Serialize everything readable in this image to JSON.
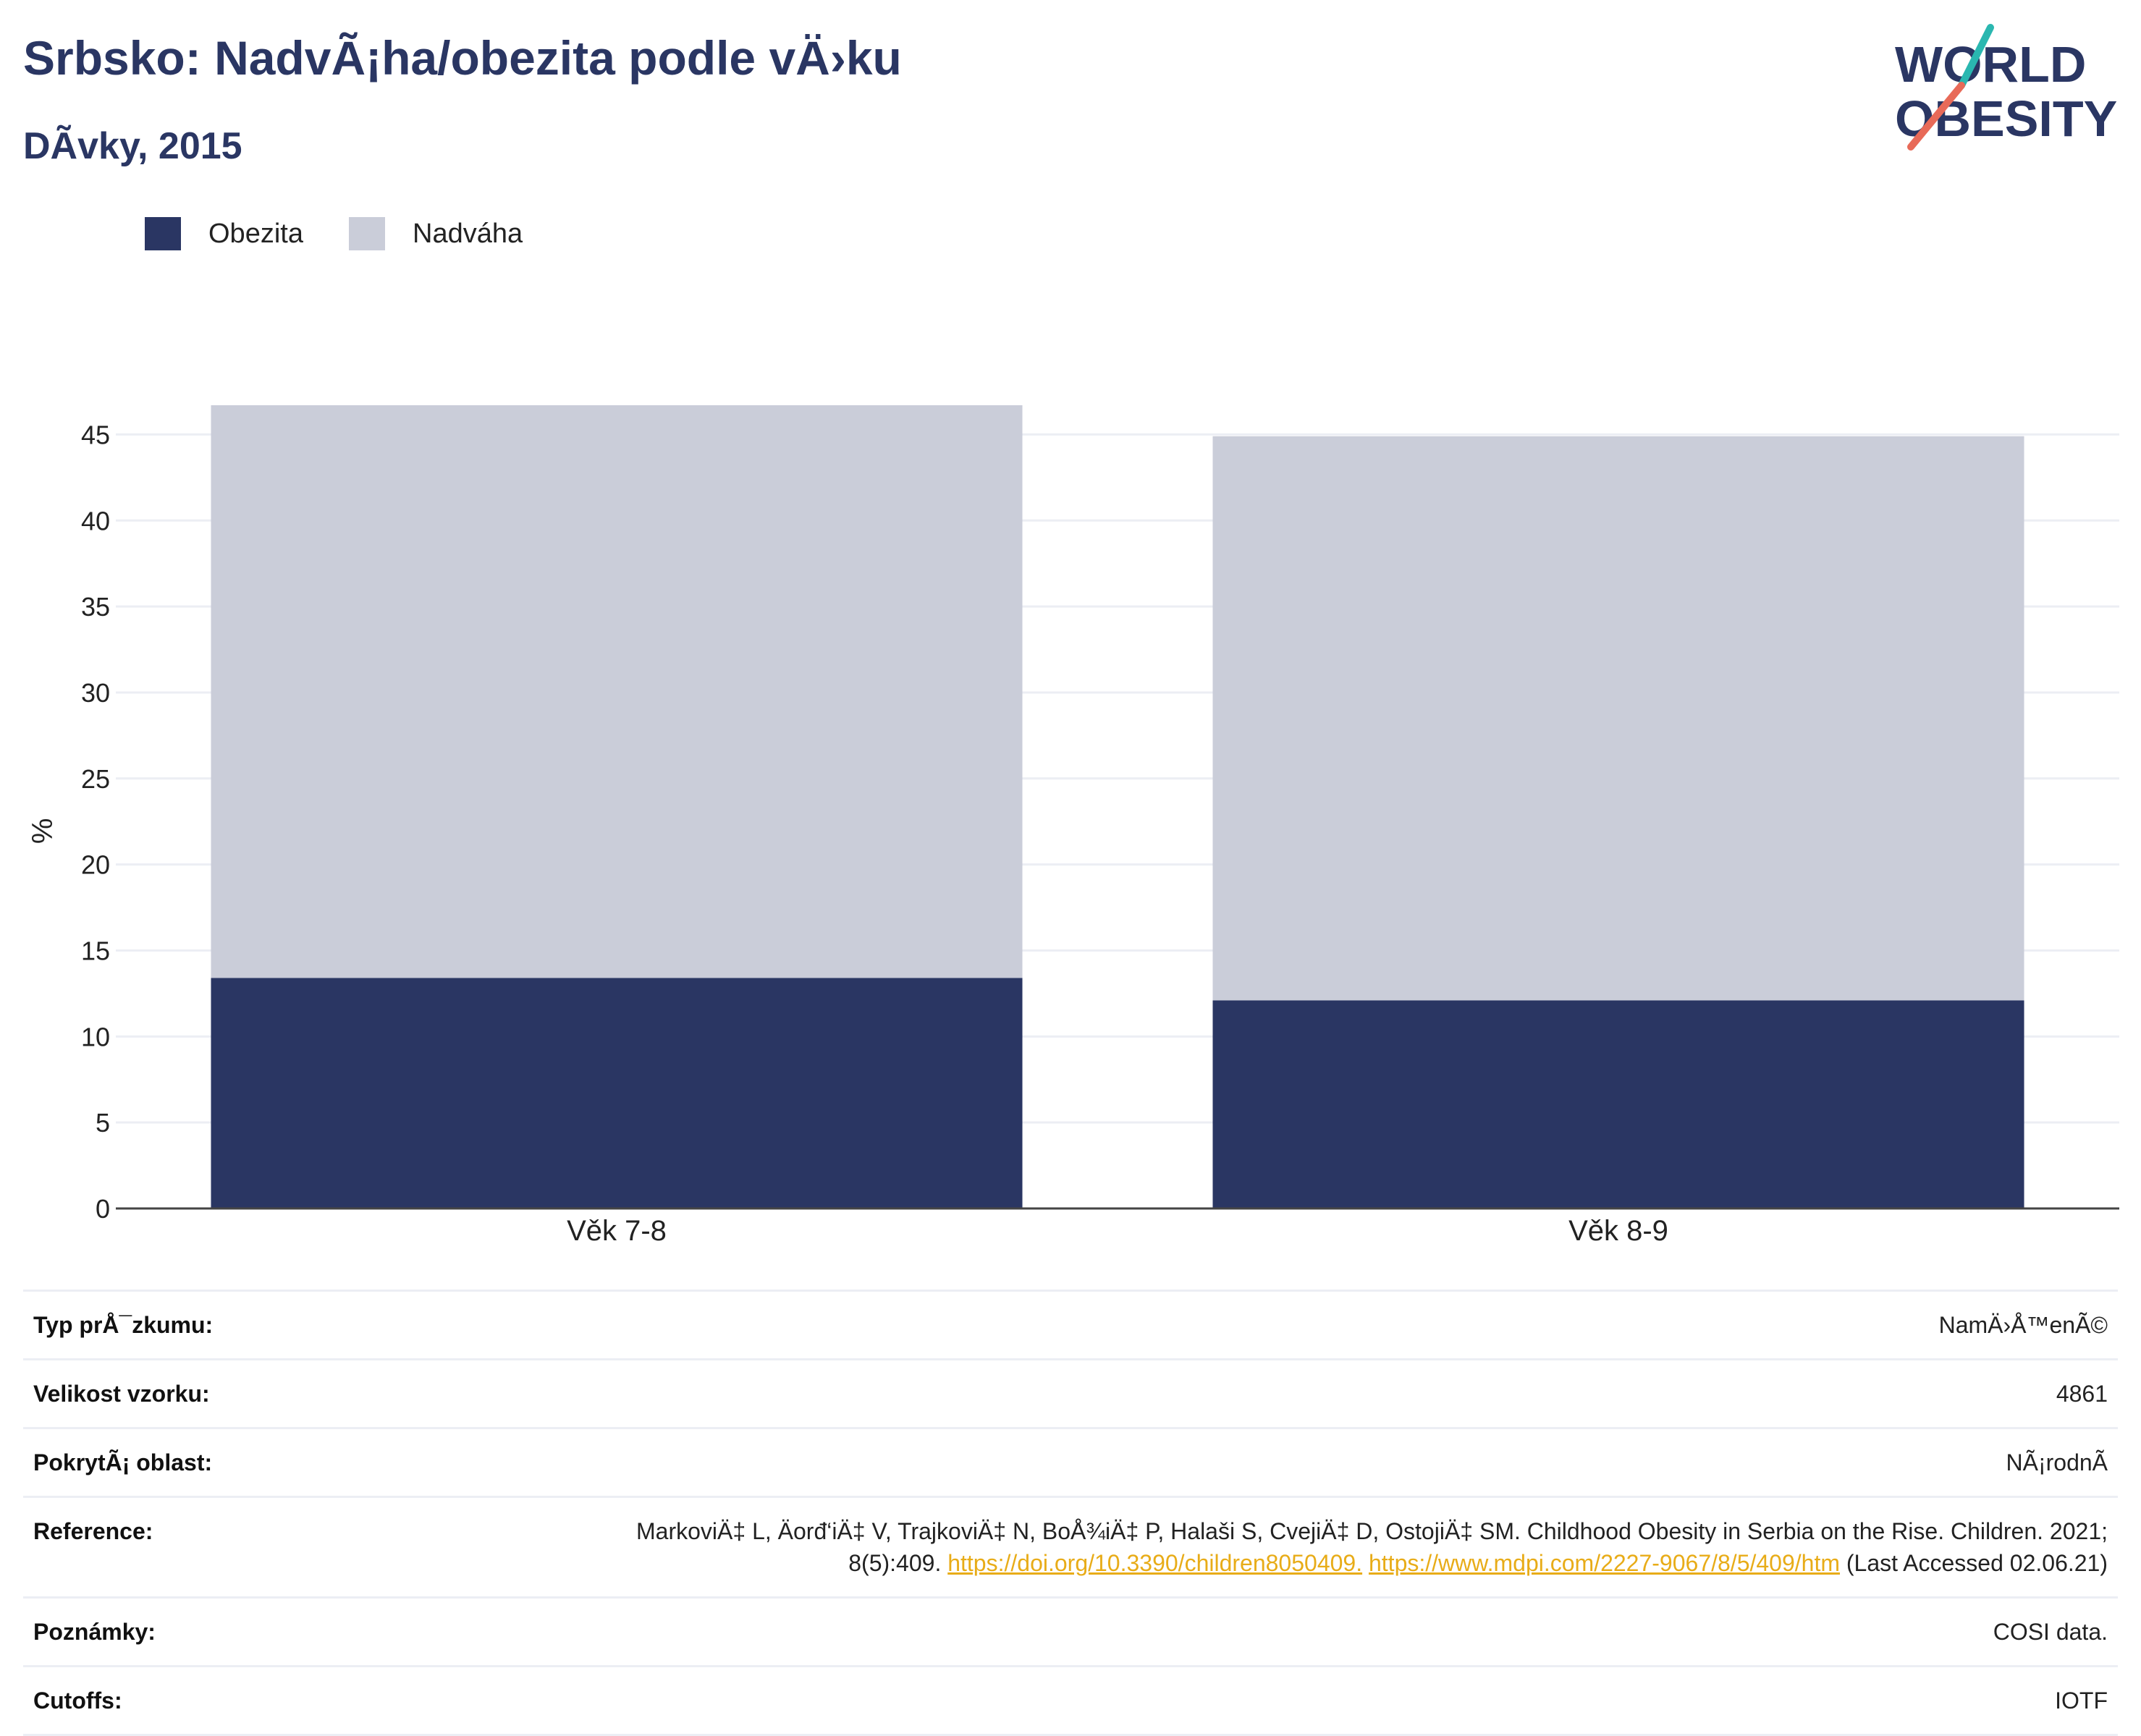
{
  "header": {
    "title": "Srbsko: NadvÃ¡ha/obezita podle vÄ›ku",
    "subtitle": "DÃ­vky, 2015"
  },
  "logo": {
    "line1": "WORLD",
    "line2": "OBESITY"
  },
  "legend": [
    {
      "label": "Obezita",
      "color": "#2a3663"
    },
    {
      "label": "Nadváha",
      "color": "#cacdd9"
    }
  ],
  "chart_data": {
    "type": "bar",
    "stacked": true,
    "categories": [
      "Věk 7-8",
      "Věk 8-9"
    ],
    "series": [
      {
        "name": "Obezita",
        "values": [
          13.4,
          12.1
        ],
        "color": "#2a3663"
      },
      {
        "name": "Nadváha",
        "values": [
          33.3,
          32.8
        ],
        "color": "#cacdd9"
      }
    ],
    "ylabel": "%",
    "ylim": [
      0,
      46.7
    ],
    "yticks": [
      0,
      5,
      10,
      15,
      20,
      25,
      30,
      35,
      40,
      45
    ],
    "grid": true,
    "legend_position": "top-left"
  },
  "meta": [
    {
      "key": "Typ prÅ¯zkumu:",
      "value": "NamÄ›Å™enÃ©"
    },
    {
      "key": "Velikost vzorku:",
      "value": "4861"
    },
    {
      "key": "PokrytÃ¡ oblast:",
      "value": "NÃ¡rodnÃ­"
    },
    {
      "key": "Reference:",
      "value_parts": [
        {
          "text": "MarkoviÄ‡ L, Äorđ‘iÄ‡ V, TrajkoviÄ‡ N, BoÅ¾iÄ‡ P, Halaši S, CvejiÄ‡ D, OstojiÄ‡ SM. Childhood Obesity in Serbia on the Rise. Children. 2021; 8(5):409. "
        },
        {
          "text": "https://doi.org/10.3390/children8050409.",
          "link": true
        },
        {
          "text": " "
        },
        {
          "text": "https://www.mdpi.com/2227-9067/8/5/409/htm",
          "link": true
        },
        {
          "text": " (Last Accessed 02.06.21)"
        }
      ]
    },
    {
      "key": "Poznámky:",
      "value": "COSI data."
    },
    {
      "key": "Cutoffs:",
      "value": "IOTF"
    }
  ]
}
